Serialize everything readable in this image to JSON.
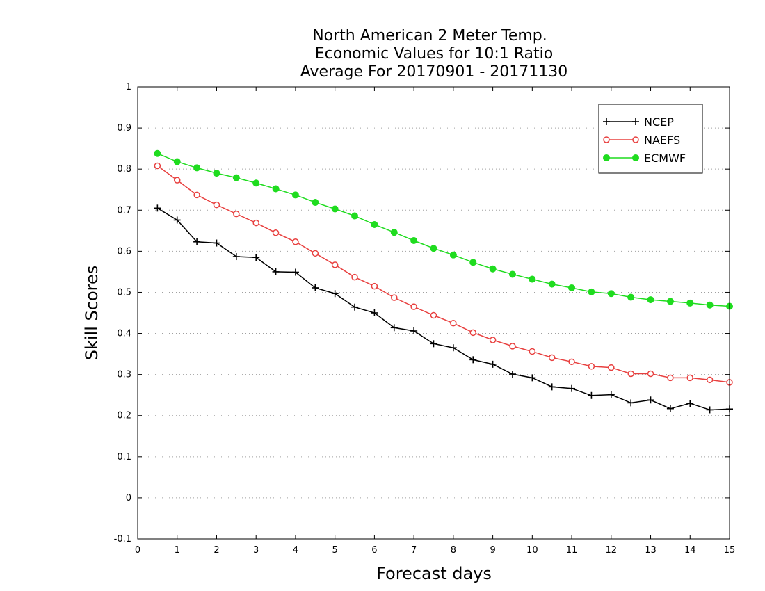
{
  "chart_data": {
    "type": "line",
    "title": [
      "North American 2 Meter Temp.",
      "Economic Values for 10:1 Ratio",
      "Average For 20170901 - 20171130"
    ],
    "xlabel": "Forecast days",
    "ylabel": "Skill Scores",
    "xlim": [
      0,
      15
    ],
    "ylim": [
      -0.1,
      1
    ],
    "xticks": [
      0,
      1,
      2,
      3,
      4,
      5,
      6,
      7,
      8,
      9,
      10,
      11,
      12,
      13,
      14,
      15
    ],
    "yticks": [
      -0.1,
      0,
      0.1,
      0.2,
      0.3,
      0.4,
      0.5,
      0.6,
      0.7,
      0.8,
      0.9,
      1
    ],
    "ytick_labels": [
      "-0.1",
      "0",
      "0.1",
      "0.2",
      "0.3",
      "0.4",
      "0.5",
      "0.6",
      "0.7",
      "0.8",
      "0.9",
      "1"
    ],
    "grid": "horizontal dotted",
    "legend_position": "top-right",
    "x": [
      0.5,
      1,
      1.5,
      2,
      2.5,
      3,
      3.5,
      4,
      4.5,
      5,
      5.5,
      6,
      6.5,
      7,
      7.5,
      8,
      8.5,
      9,
      9.5,
      10,
      10.5,
      11,
      11.5,
      12,
      12.5,
      13,
      13.5,
      14,
      14.5,
      15
    ],
    "series": [
      {
        "name": "NCEP",
        "color": "#000000",
        "marker": "plus",
        "values": [
          0.705,
          0.676,
          0.623,
          0.62,
          0.587,
          0.585,
          0.55,
          0.549,
          0.511,
          0.497,
          0.464,
          0.45,
          0.414,
          0.406,
          0.375,
          0.365,
          0.336,
          0.325,
          0.301,
          0.292,
          0.27,
          0.266,
          0.249,
          0.251,
          0.231,
          0.238,
          0.217,
          0.23,
          0.214,
          0.216
        ]
      },
      {
        "name": "NAEFS",
        "color": "#e8403f",
        "marker": "open-circle",
        "values": [
          0.808,
          0.773,
          0.737,
          0.713,
          0.691,
          0.669,
          0.645,
          0.623,
          0.595,
          0.567,
          0.537,
          0.515,
          0.487,
          0.465,
          0.444,
          0.425,
          0.402,
          0.384,
          0.369,
          0.356,
          0.341,
          0.331,
          0.32,
          0.317,
          0.302,
          0.302,
          0.292,
          0.292,
          0.287,
          0.281
        ]
      },
      {
        "name": "ECMWF",
        "color": "#1fdc1f",
        "marker": "filled-circle",
        "values": [
          0.838,
          0.818,
          0.803,
          0.79,
          0.779,
          0.766,
          0.752,
          0.737,
          0.719,
          0.703,
          0.686,
          0.665,
          0.646,
          0.626,
          0.607,
          0.591,
          0.573,
          0.557,
          0.544,
          0.532,
          0.52,
          0.511,
          0.501,
          0.497,
          0.488,
          0.482,
          0.478,
          0.474,
          0.469,
          0.466
        ]
      }
    ]
  }
}
